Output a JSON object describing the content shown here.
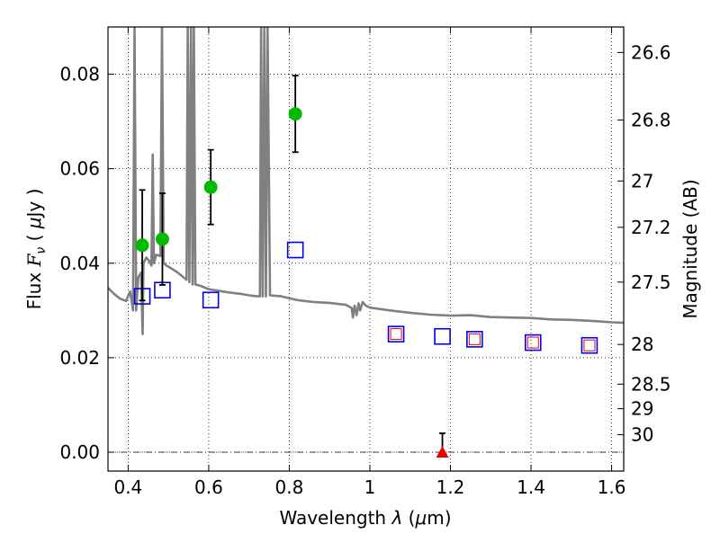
{
  "chart_data": {
    "type": "scatter",
    "xlabel": {
      "prefix": "Wavelength  ",
      "symbol": "λ",
      "suffix": " (",
      "unit_mu": "μ",
      "unit_rest": "m)"
    },
    "ylabel": {
      "prefix": "Flux  ",
      "symbol": "F",
      "subscript": "ν",
      "suffix": "  ( ",
      "unit_mu": "μ",
      "unit_rest": "Jy )"
    },
    "y2label": "Magnitude (AB)",
    "xlim": [
      0.35,
      1.63
    ],
    "ylim": [
      -0.004,
      0.09
    ],
    "x_ticks": [
      {
        "value": 0.4,
        "label": "0.4"
      },
      {
        "value": 0.6,
        "label": "0.6"
      },
      {
        "value": 0.8,
        "label": "0.8"
      },
      {
        "value": 1.0,
        "label": "1"
      },
      {
        "value": 1.2,
        "label": "1.2"
      },
      {
        "value": 1.4,
        "label": "1.4"
      },
      {
        "value": 1.6,
        "label": "1.6"
      }
    ],
    "y_ticks": [
      {
        "value": 0.0,
        "label": "0.00"
      },
      {
        "value": 0.02,
        "label": "0.02"
      },
      {
        "value": 0.04,
        "label": "0.04"
      },
      {
        "value": 0.06,
        "label": "0.06"
      },
      {
        "value": 0.08,
        "label": "0.08"
      }
    ],
    "y2_ticks": [
      {
        "flux": 0.0846,
        "label": "26.6"
      },
      {
        "flux": 0.0703,
        "label": "26.8"
      },
      {
        "flux": 0.0574,
        "label": "27"
      },
      {
        "flux": 0.0476,
        "label": "27.2"
      },
      {
        "flux": 0.036,
        "label": "27.5"
      },
      {
        "flux": 0.0228,
        "label": "28"
      },
      {
        "flux": 0.0144,
        "label": "28.5"
      },
      {
        "flux": 0.0092,
        "label": "29"
      },
      {
        "flux": 0.0037,
        "label": "30"
      }
    ],
    "grid": true,
    "reference_line": {
      "y": 0.0,
      "style": "dash-dot"
    },
    "colors": {
      "observed": "#00bb00",
      "model_box": "#0000ee",
      "model_inner": "#ee0000",
      "upper_limit": "#ee0000",
      "spectrum": "#808080",
      "errorbar": "#000000"
    },
    "series": [
      {
        "marker": "circle",
        "points": [
          {
            "x": 0.435,
            "y": 0.0438,
            "err": 0.0117
          },
          {
            "x": 0.485,
            "y": 0.0451,
            "err": 0.0097
          },
          {
            "x": 0.605,
            "y": 0.0561,
            "err": 0.0079
          },
          {
            "x": 0.815,
            "y": 0.0716,
            "err": 0.0081
          }
        ]
      },
      {
        "marker": "open-square",
        "points": [
          {
            "x": 0.435,
            "y": 0.033
          },
          {
            "x": 0.485,
            "y": 0.0343
          },
          {
            "x": 0.605,
            "y": 0.0322
          },
          {
            "x": 0.815,
            "y": 0.0428
          },
          {
            "x": 1.065,
            "y": 0.025
          },
          {
            "x": 1.18,
            "y": 0.0245
          },
          {
            "x": 1.26,
            "y": 0.0239
          },
          {
            "x": 1.405,
            "y": 0.0232
          },
          {
            "x": 1.545,
            "y": 0.0226
          }
        ]
      },
      {
        "marker": "small-open-square",
        "points": [
          {
            "x": 1.065,
            "y": 0.025
          },
          {
            "x": 1.26,
            "y": 0.0239
          },
          {
            "x": 1.405,
            "y": 0.0232
          },
          {
            "x": 1.545,
            "y": 0.0226
          }
        ]
      },
      {
        "marker": "triangle-up",
        "points": [
          {
            "x": 1.18,
            "y": 0.0,
            "err": 0.004
          }
        ]
      },
      {
        "marker": "line",
        "points": [
          [
            0.35,
            0.0348
          ],
          [
            0.365,
            0.0335
          ],
          [
            0.38,
            0.0325
          ],
          [
            0.395,
            0.032
          ],
          [
            0.405,
            0.034
          ],
          [
            0.412,
            0.03
          ],
          [
            0.416,
            0.09
          ],
          [
            0.42,
            0.03
          ],
          [
            0.425,
            0.037
          ],
          [
            0.432,
            0.038
          ],
          [
            0.436,
            0.025
          ],
          [
            0.438,
            0.04
          ],
          [
            0.445,
            0.0412
          ],
          [
            0.452,
            0.0405
          ],
          [
            0.458,
            0.0395
          ],
          [
            0.461,
            0.063
          ],
          [
            0.464,
            0.04
          ],
          [
            0.47,
            0.0418
          ],
          [
            0.48,
            0.0415
          ],
          [
            0.484,
            0.09
          ],
          [
            0.488,
            0.04
          ],
          [
            0.495,
            0.0395
          ],
          [
            0.505,
            0.039
          ],
          [
            0.52,
            0.0382
          ],
          [
            0.535,
            0.0372
          ],
          [
            0.545,
            0.0365
          ],
          [
            0.548,
            0.09
          ],
          [
            0.552,
            0.036
          ],
          [
            0.556,
            0.09
          ],
          [
            0.56,
            0.0355
          ],
          [
            0.563,
            0.09
          ],
          [
            0.567,
            0.0355
          ],
          [
            0.58,
            0.0352
          ],
          [
            0.6,
            0.0345
          ],
          [
            0.62,
            0.0342
          ],
          [
            0.65,
            0.0338
          ],
          [
            0.68,
            0.0335
          ],
          [
            0.7,
            0.0332
          ],
          [
            0.72,
            0.033
          ],
          [
            0.727,
            0.033
          ],
          [
            0.73,
            0.09
          ],
          [
            0.734,
            0.033
          ],
          [
            0.738,
            0.09
          ],
          [
            0.742,
            0.033
          ],
          [
            0.746,
            0.09
          ],
          [
            0.752,
            0.0332
          ],
          [
            0.78,
            0.033
          ],
          [
            0.82,
            0.0322
          ],
          [
            0.86,
            0.0318
          ],
          [
            0.9,
            0.0316
          ],
          [
            0.94,
            0.0312
          ],
          [
            0.955,
            0.0305
          ],
          [
            0.958,
            0.0285
          ],
          [
            0.962,
            0.031
          ],
          [
            0.967,
            0.029
          ],
          [
            0.972,
            0.0315
          ],
          [
            0.976,
            0.03
          ],
          [
            0.982,
            0.0318
          ],
          [
            0.99,
            0.031
          ],
          [
            1.0,
            0.0306
          ],
          [
            1.05,
            0.03
          ],
          [
            1.1,
            0.0295
          ],
          [
            1.15,
            0.0291
          ],
          [
            1.2,
            0.0289
          ],
          [
            1.25,
            0.029
          ],
          [
            1.3,
            0.0286
          ],
          [
            1.35,
            0.0285
          ],
          [
            1.4,
            0.0284
          ],
          [
            1.45,
            0.0281
          ],
          [
            1.5,
            0.028
          ],
          [
            1.55,
            0.0278
          ],
          [
            1.6,
            0.0275
          ],
          [
            1.63,
            0.0274
          ]
        ]
      }
    ]
  }
}
